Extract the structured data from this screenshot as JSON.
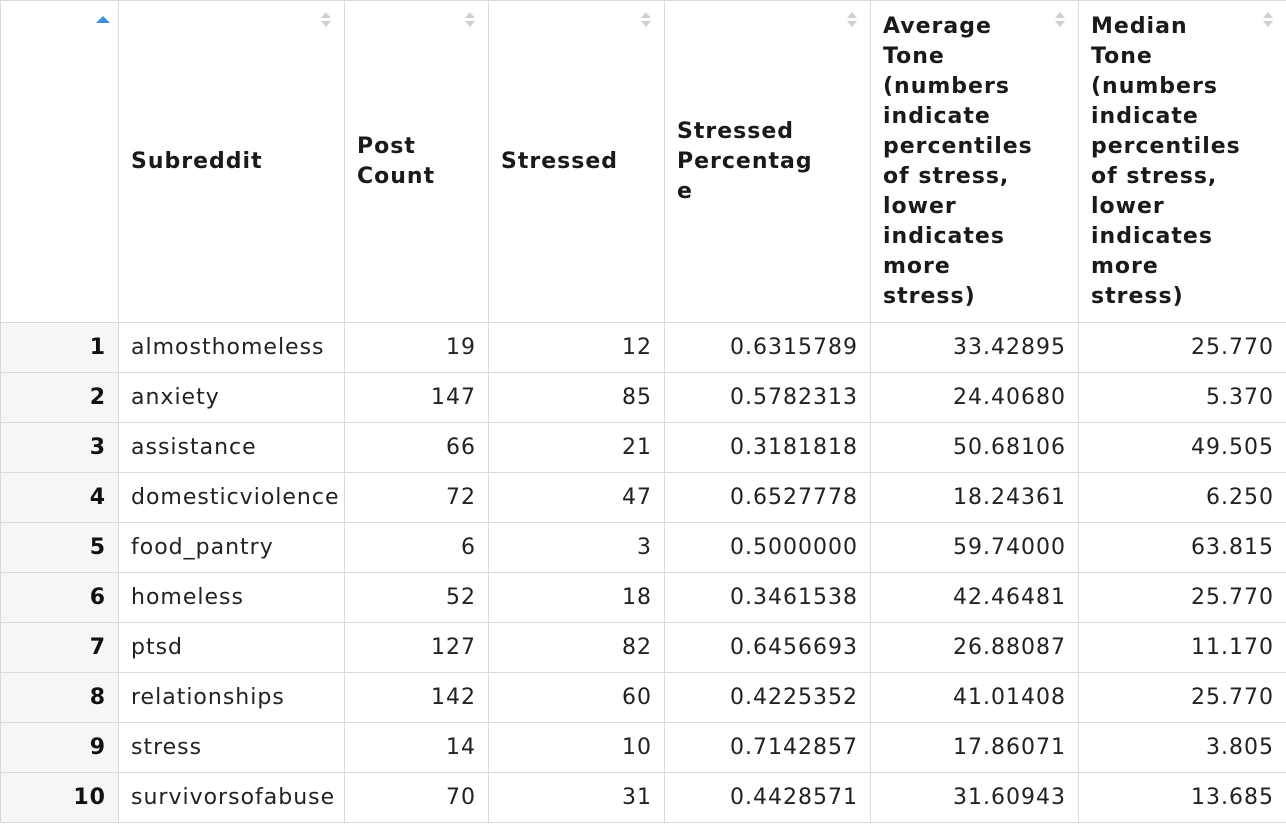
{
  "table": {
    "columns": [
      {
        "label": "",
        "sorted": "ascending"
      },
      {
        "label": "Subreddit"
      },
      {
        "label": "Post Count"
      },
      {
        "label": "Stressed"
      },
      {
        "label": "Stressed Percentage"
      },
      {
        "label": "Average Tone (numbers indicate percentiles of stress, lower indicates more stress)"
      },
      {
        "label": "Median Tone (numbers indicate percentiles of stress, lower indicates more stress)"
      }
    ],
    "rows": [
      {
        "index": "1",
        "subreddit": "almosthomeless",
        "post_count": "19",
        "stressed": "12",
        "stressed_pct": "0.6315789",
        "avg_tone": "33.42895",
        "median_tone": "25.770"
      },
      {
        "index": "2",
        "subreddit": "anxiety",
        "post_count": "147",
        "stressed": "85",
        "stressed_pct": "0.5782313",
        "avg_tone": "24.40680",
        "median_tone": "5.370"
      },
      {
        "index": "3",
        "subreddit": "assistance",
        "post_count": "66",
        "stressed": "21",
        "stressed_pct": "0.3181818",
        "avg_tone": "50.68106",
        "median_tone": "49.505"
      },
      {
        "index": "4",
        "subreddit": "domesticviolence",
        "post_count": "72",
        "stressed": "47",
        "stressed_pct": "0.6527778",
        "avg_tone": "18.24361",
        "median_tone": "6.250"
      },
      {
        "index": "5",
        "subreddit": "food_pantry",
        "post_count": "6",
        "stressed": "3",
        "stressed_pct": "0.5000000",
        "avg_tone": "59.74000",
        "median_tone": "63.815"
      },
      {
        "index": "6",
        "subreddit": "homeless",
        "post_count": "52",
        "stressed": "18",
        "stressed_pct": "0.3461538",
        "avg_tone": "42.46481",
        "median_tone": "25.770"
      },
      {
        "index": "7",
        "subreddit": "ptsd",
        "post_count": "127",
        "stressed": "82",
        "stressed_pct": "0.6456693",
        "avg_tone": "26.88087",
        "median_tone": "11.170"
      },
      {
        "index": "8",
        "subreddit": "relationships",
        "post_count": "142",
        "stressed": "60",
        "stressed_pct": "0.4225352",
        "avg_tone": "41.01408",
        "median_tone": "25.770"
      },
      {
        "index": "9",
        "subreddit": "stress",
        "post_count": "14",
        "stressed": "10",
        "stressed_pct": "0.7142857",
        "avg_tone": "17.86071",
        "median_tone": "3.805"
      },
      {
        "index": "10",
        "subreddit": "survivorsofabuse",
        "post_count": "70",
        "stressed": "31",
        "stressed_pct": "0.4428571",
        "avg_tone": "31.60943",
        "median_tone": "13.685"
      }
    ]
  },
  "colors": {
    "sort_active": "#3d8fd9",
    "sort_inactive": "#d0d0d0",
    "index_bg": "#f4f6f8",
    "border": "#d9d9d9"
  },
  "icons": {
    "active_sort": "sort-ascending-icon",
    "inactive_sort": "sort-icon"
  }
}
